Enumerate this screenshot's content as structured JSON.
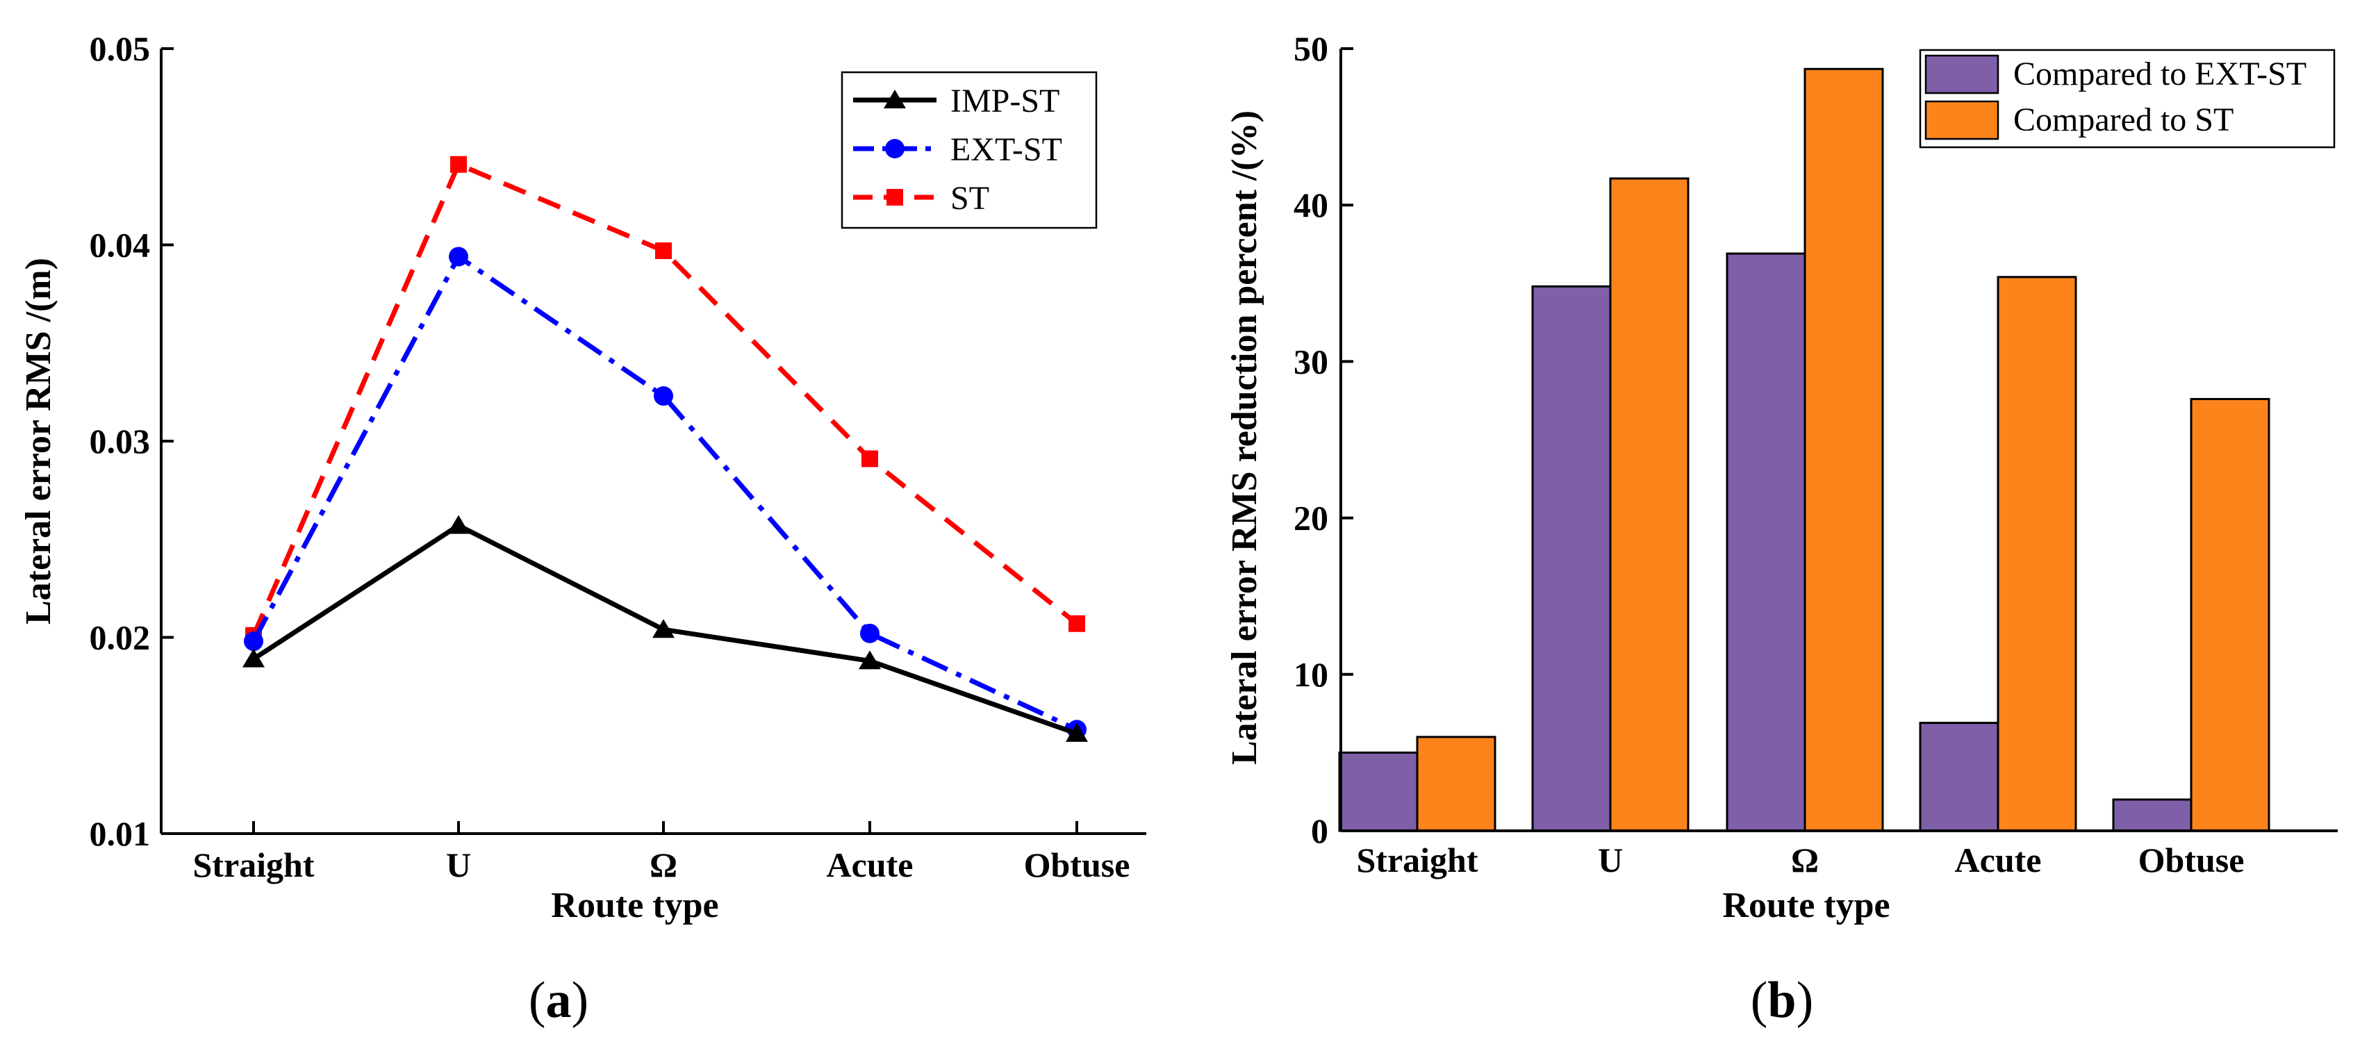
{
  "chart_data": [
    {
      "type": "line",
      "panel_label": {
        "open": "(",
        "letter": "a",
        "close": ")"
      },
      "xlabel": "Route type",
      "ylabel": "Lateral error RMS /(m)",
      "categories": [
        "Straight",
        "U",
        "Ω",
        "Acute",
        "Obtuse"
      ],
      "ylim": [
        0.01,
        0.05
      ],
      "yticks": [
        "0.01",
        "0.02",
        "0.03",
        "0.04",
        "0.05"
      ],
      "legend_position": "top-right",
      "series": [
        {
          "name": "IMP-ST",
          "color": "#000000",
          "marker": "triangle",
          "dash": "solid",
          "values": [
            0.0189,
            0.0257,
            0.0204,
            0.0188,
            0.0151
          ]
        },
        {
          "name": "EXT-ST",
          "color": "#0000ff",
          "marker": "circle",
          "dash": "dashdot",
          "values": [
            0.0198,
            0.0394,
            0.0323,
            0.0202,
            0.0153
          ]
        },
        {
          "name": "ST",
          "color": "#ff0000",
          "marker": "square",
          "dash": "dashed",
          "values": [
            0.0201,
            0.0441,
            0.0397,
            0.0291,
            0.0207
          ]
        }
      ]
    },
    {
      "type": "bar",
      "panel_label": {
        "open": "(",
        "letter": "b",
        "close": ")"
      },
      "xlabel": "Route type",
      "ylabel": "Lateral error RMS reduction percent /(%)",
      "categories": [
        "Straight",
        "U",
        "Ω",
        "Acute",
        "Obtuse"
      ],
      "ylim": [
        0,
        50
      ],
      "yticks": [
        "0",
        "10",
        "20",
        "30",
        "40",
        "50"
      ],
      "legend_position": "top-right",
      "series": [
        {
          "name": "Compared to EXT-ST",
          "color": "#7f5fa8",
          "values": [
            5.0,
            34.8,
            36.9,
            6.9,
            2.0
          ]
        },
        {
          "name": "Compared to ST",
          "color": "#fd841b",
          "values": [
            6.0,
            41.7,
            48.7,
            35.4,
            27.6
          ]
        }
      ]
    }
  ]
}
